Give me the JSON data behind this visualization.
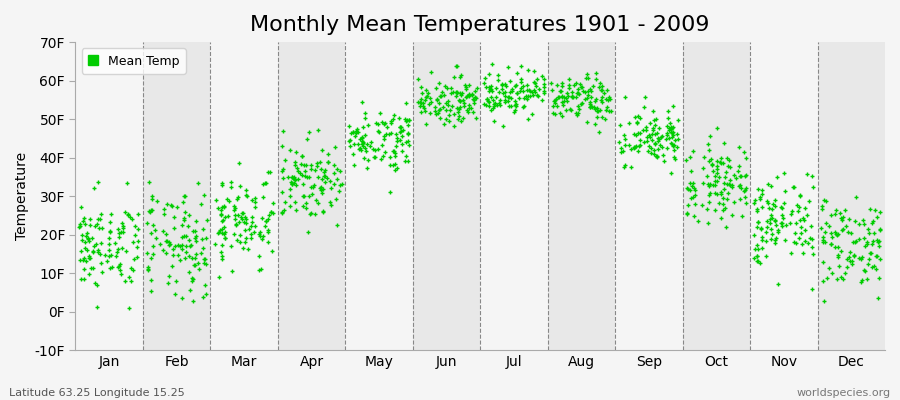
{
  "title": "Monthly Mean Temperatures 1901 - 2009",
  "ylabel": "Temperature",
  "legend_label": "Mean Temp",
  "bottom_left": "Latitude 63.25 Longitude 15.25",
  "bottom_right": "worldspecies.org",
  "ylim": [
    -10,
    70
  ],
  "yticks": [
    -10,
    0,
    10,
    20,
    30,
    40,
    50,
    60,
    70
  ],
  "ytick_labels": [
    "-10F",
    "0F",
    "10F",
    "20F",
    "30F",
    "40F",
    "50F",
    "60F",
    "70F"
  ],
  "months": [
    "Jan",
    "Feb",
    "Mar",
    "Apr",
    "May",
    "Jun",
    "Jul",
    "Aug",
    "Sep",
    "Oct",
    "Nov",
    "Dec"
  ],
  "dot_color": "#00cc00",
  "background_color": "#f5f5f5",
  "band_color_odd": "#e8e8e8",
  "band_color_even": "#f5f5f5",
  "n_years": 109,
  "random_seed": 42,
  "mean_temps_F": [
    17,
    17,
    24,
    34,
    45,
    55,
    57,
    55,
    45,
    34,
    23,
    18
  ],
  "std_temps_F": [
    6,
    7,
    6,
    5,
    4,
    3,
    3,
    3,
    4,
    5,
    6,
    6
  ],
  "title_fontsize": 16,
  "axis_fontsize": 10,
  "legend_fontsize": 9,
  "dot_size": 10,
  "dot_marker": "+"
}
